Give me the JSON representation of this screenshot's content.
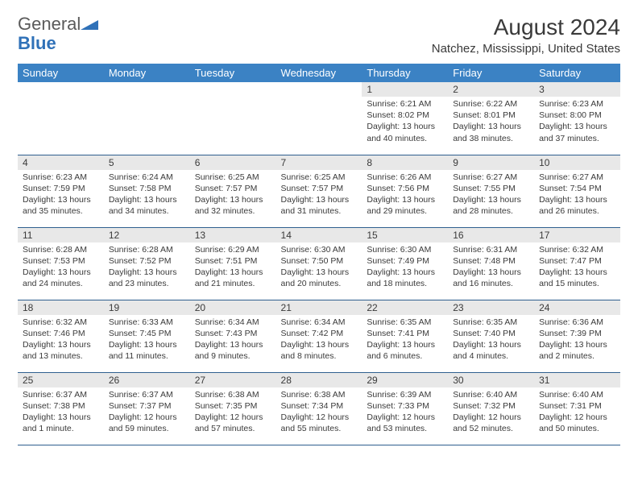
{
  "brand": {
    "general": "General",
    "blue": "Blue"
  },
  "title": {
    "month": "August 2024",
    "location": "Natchez, Mississippi, United States"
  },
  "colors": {
    "header_bg": "#3b82c4",
    "header_text": "#ffffff",
    "daynum_bg": "#e8e8e8",
    "rule": "#2f5f8f",
    "text": "#3a3a3a",
    "brand_blue": "#2f71b8"
  },
  "fonts": {
    "month_title_pt": 28,
    "location_pt": 15,
    "weekday_pt": 13,
    "daynum_pt": 12,
    "info_pt": 10.5
  },
  "weekdays": [
    "Sunday",
    "Monday",
    "Tuesday",
    "Wednesday",
    "Thursday",
    "Friday",
    "Saturday"
  ],
  "weeks": [
    [
      null,
      null,
      null,
      null,
      {
        "n": "1",
        "sunrise": "6:21 AM",
        "sunset": "8:02 PM",
        "daylight": "13 hours and 40 minutes."
      },
      {
        "n": "2",
        "sunrise": "6:22 AM",
        "sunset": "8:01 PM",
        "daylight": "13 hours and 38 minutes."
      },
      {
        "n": "3",
        "sunrise": "6:23 AM",
        "sunset": "8:00 PM",
        "daylight": "13 hours and 37 minutes."
      }
    ],
    [
      {
        "n": "4",
        "sunrise": "6:23 AM",
        "sunset": "7:59 PM",
        "daylight": "13 hours and 35 minutes."
      },
      {
        "n": "5",
        "sunrise": "6:24 AM",
        "sunset": "7:58 PM",
        "daylight": "13 hours and 34 minutes."
      },
      {
        "n": "6",
        "sunrise": "6:25 AM",
        "sunset": "7:57 PM",
        "daylight": "13 hours and 32 minutes."
      },
      {
        "n": "7",
        "sunrise": "6:25 AM",
        "sunset": "7:57 PM",
        "daylight": "13 hours and 31 minutes."
      },
      {
        "n": "8",
        "sunrise": "6:26 AM",
        "sunset": "7:56 PM",
        "daylight": "13 hours and 29 minutes."
      },
      {
        "n": "9",
        "sunrise": "6:27 AM",
        "sunset": "7:55 PM",
        "daylight": "13 hours and 28 minutes."
      },
      {
        "n": "10",
        "sunrise": "6:27 AM",
        "sunset": "7:54 PM",
        "daylight": "13 hours and 26 minutes."
      }
    ],
    [
      {
        "n": "11",
        "sunrise": "6:28 AM",
        "sunset": "7:53 PM",
        "daylight": "13 hours and 24 minutes."
      },
      {
        "n": "12",
        "sunrise": "6:28 AM",
        "sunset": "7:52 PM",
        "daylight": "13 hours and 23 minutes."
      },
      {
        "n": "13",
        "sunrise": "6:29 AM",
        "sunset": "7:51 PM",
        "daylight": "13 hours and 21 minutes."
      },
      {
        "n": "14",
        "sunrise": "6:30 AM",
        "sunset": "7:50 PM",
        "daylight": "13 hours and 20 minutes."
      },
      {
        "n": "15",
        "sunrise": "6:30 AM",
        "sunset": "7:49 PM",
        "daylight": "13 hours and 18 minutes."
      },
      {
        "n": "16",
        "sunrise": "6:31 AM",
        "sunset": "7:48 PM",
        "daylight": "13 hours and 16 minutes."
      },
      {
        "n": "17",
        "sunrise": "6:32 AM",
        "sunset": "7:47 PM",
        "daylight": "13 hours and 15 minutes."
      }
    ],
    [
      {
        "n": "18",
        "sunrise": "6:32 AM",
        "sunset": "7:46 PM",
        "daylight": "13 hours and 13 minutes."
      },
      {
        "n": "19",
        "sunrise": "6:33 AM",
        "sunset": "7:45 PM",
        "daylight": "13 hours and 11 minutes."
      },
      {
        "n": "20",
        "sunrise": "6:34 AM",
        "sunset": "7:43 PM",
        "daylight": "13 hours and 9 minutes."
      },
      {
        "n": "21",
        "sunrise": "6:34 AM",
        "sunset": "7:42 PM",
        "daylight": "13 hours and 8 minutes."
      },
      {
        "n": "22",
        "sunrise": "6:35 AM",
        "sunset": "7:41 PM",
        "daylight": "13 hours and 6 minutes."
      },
      {
        "n": "23",
        "sunrise": "6:35 AM",
        "sunset": "7:40 PM",
        "daylight": "13 hours and 4 minutes."
      },
      {
        "n": "24",
        "sunrise": "6:36 AM",
        "sunset": "7:39 PM",
        "daylight": "13 hours and 2 minutes."
      }
    ],
    [
      {
        "n": "25",
        "sunrise": "6:37 AM",
        "sunset": "7:38 PM",
        "daylight": "13 hours and 1 minute."
      },
      {
        "n": "26",
        "sunrise": "6:37 AM",
        "sunset": "7:37 PM",
        "daylight": "12 hours and 59 minutes."
      },
      {
        "n": "27",
        "sunrise": "6:38 AM",
        "sunset": "7:35 PM",
        "daylight": "12 hours and 57 minutes."
      },
      {
        "n": "28",
        "sunrise": "6:38 AM",
        "sunset": "7:34 PM",
        "daylight": "12 hours and 55 minutes."
      },
      {
        "n": "29",
        "sunrise": "6:39 AM",
        "sunset": "7:33 PM",
        "daylight": "12 hours and 53 minutes."
      },
      {
        "n": "30",
        "sunrise": "6:40 AM",
        "sunset": "7:32 PM",
        "daylight": "12 hours and 52 minutes."
      },
      {
        "n": "31",
        "sunrise": "6:40 AM",
        "sunset": "7:31 PM",
        "daylight": "12 hours and 50 minutes."
      }
    ]
  ],
  "labels": {
    "sunrise": "Sunrise: ",
    "sunset": "Sunset: ",
    "daylight": "Daylight: "
  }
}
